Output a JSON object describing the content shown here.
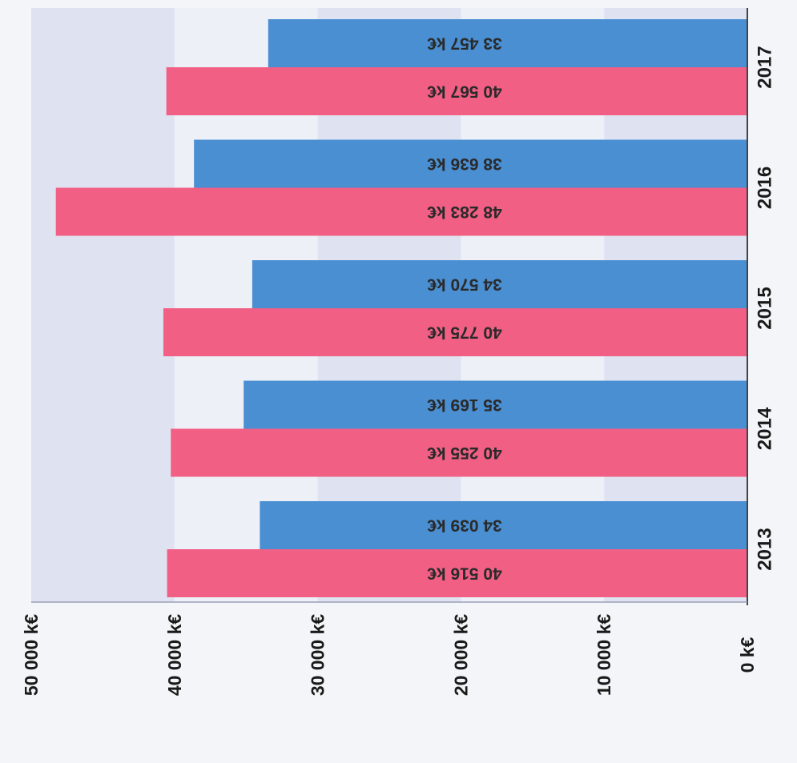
{
  "chart_data": {
    "type": "bar",
    "orientation": "horizontal",
    "rotated": "180deg (image shown upside down)",
    "categories": [
      "2013",
      "2014",
      "2015",
      "2016",
      "2017"
    ],
    "series": [
      {
        "color": "#f25f84",
        "values": [
          40516,
          40255,
          40775,
          48283,
          40567
        ],
        "labels": [
          "40 516 k€",
          "40 255 k€",
          "40 775 k€",
          "48 283 k€",
          "40 567 k€"
        ]
      },
      {
        "color": "#4a8fd2",
        "values": [
          34039,
          35169,
          34570,
          38636,
          33457
        ],
        "labels": [
          "34 039 k€",
          "35 169 k€",
          "34 570 k€",
          "38 636 k€",
          "33 457 k€"
        ]
      }
    ],
    "ticks": [
      0,
      10000,
      20000,
      30000,
      40000,
      50000
    ],
    "tick_labels": [
      "0 k€",
      "10 000 k€",
      "20 000 k€",
      "30 000 k€",
      "40 000 k€",
      "50 000 k€"
    ],
    "xlim": [
      0,
      50000
    ],
    "grid": true,
    "title": "",
    "xlabel": "",
    "ylabel": ""
  },
  "colors": {
    "background": "#f4f5f8",
    "band_light": "#eef0f7",
    "band_dark": "#dfe3f1",
    "axis": "#444444"
  }
}
